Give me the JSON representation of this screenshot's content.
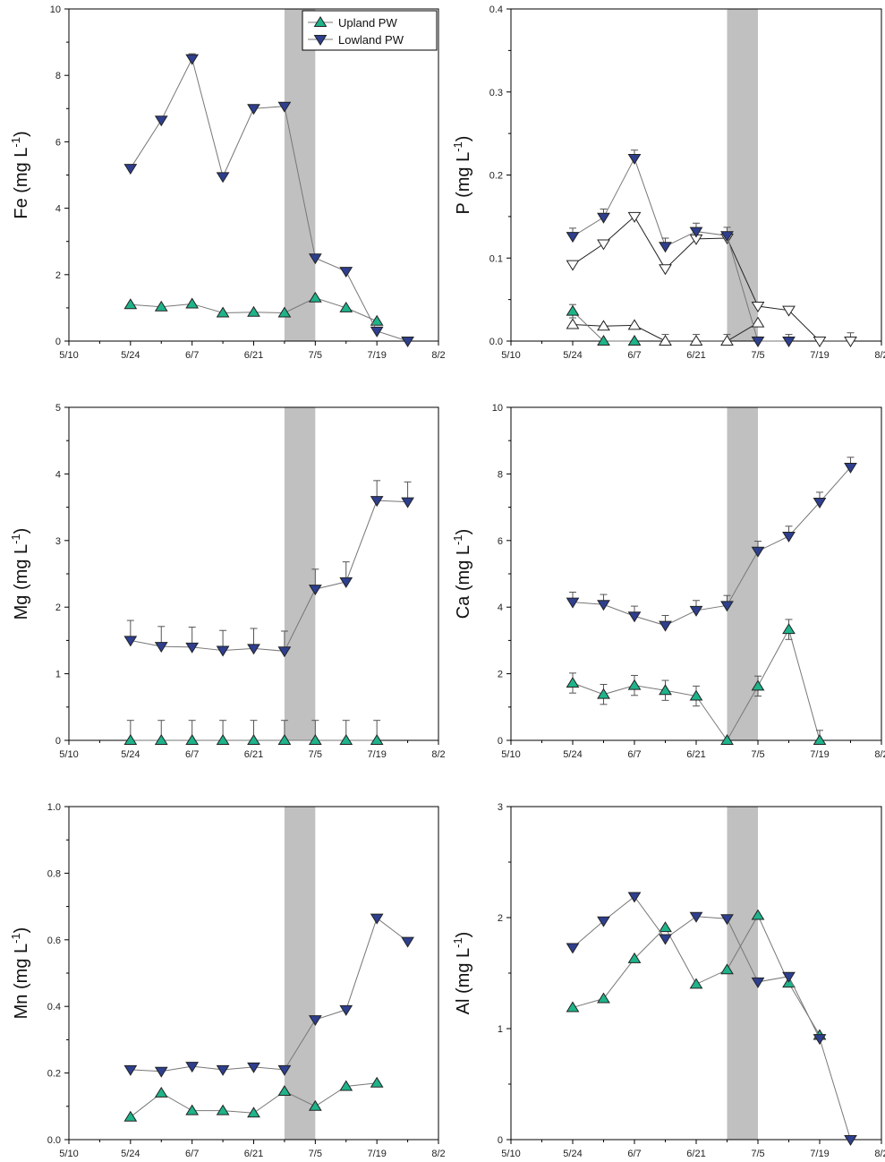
{
  "figure": {
    "legend": {
      "upland_label": "Upland PW",
      "lowland_label": "Lowland PW"
    },
    "colors": {
      "upland": "#1fb38a",
      "lowland": "#2e3f8f",
      "line": "#777777",
      "shade": "#c0c0c0",
      "open": "#ffffff"
    }
  },
  "chart_data": [
    {
      "type": "line",
      "id": "fe",
      "element": "Fe",
      "ylabel_unit": " (mg L",
      "ylabel_sup": "-1",
      "ylabel_close": ")",
      "xticks": [
        "5/10",
        "5/24",
        "6/7",
        "6/21",
        "7/5",
        "7/19",
        "8/2"
      ],
      "xlim": [
        0,
        84
      ],
      "ylim": [
        0,
        10
      ],
      "yticks": [
        "0",
        "2",
        "4",
        "6",
        "8",
        "10"
      ],
      "shade": [
        49,
        56
      ],
      "legend": true,
      "series": [
        {
          "name": "Upland PW",
          "style": "up",
          "x": [
            14,
            21,
            28,
            35,
            42,
            49,
            56,
            63,
            70
          ],
          "y": [
            1.1,
            1.03,
            1.12,
            0.85,
            0.87,
            0.85,
            1.3,
            1.0,
            0.6
          ],
          "err": [
            0,
            0,
            0,
            0,
            0,
            0,
            0,
            0,
            0
          ]
        },
        {
          "name": "Lowland PW",
          "style": "down",
          "x": [
            14,
            21,
            28,
            35,
            42,
            49,
            56,
            63,
            70,
            77
          ],
          "y": [
            5.2,
            6.65,
            8.5,
            4.95,
            7.0,
            7.07,
            2.5,
            2.1,
            0.3,
            0.0
          ],
          "err": [
            0,
            0,
            0.15,
            0,
            0.1,
            0.1,
            0,
            0,
            0,
            0
          ]
        }
      ]
    },
    {
      "type": "line",
      "id": "p",
      "element": "P",
      "ylabel_unit": " (mg L",
      "ylabel_sup": "-1",
      "ylabel_close": ")",
      "xticks": [
        "5/10",
        "5/24",
        "6/7",
        "6/21",
        "7/5",
        "7/19",
        "8/2"
      ],
      "xlim": [
        0,
        84
      ],
      "ylim": [
        0,
        0.4
      ],
      "yticks": [
        "0.0",
        "0.1",
        "0.2",
        "0.3",
        "0.4"
      ],
      "shade": [
        49,
        56
      ],
      "legend": false,
      "series": [
        {
          "name": "Upland PW open",
          "style": "up_open",
          "x": [
            14,
            21,
            28,
            35,
            42,
            49,
            56
          ],
          "y": [
            0.02,
            0.018,
            0.019,
            0,
            0,
            0,
            0.022
          ],
          "err": [
            0,
            0,
            0,
            0.008,
            0.008,
            0.008,
            0
          ]
        },
        {
          "name": "Lowland PW open",
          "style": "down_open",
          "x": [
            14,
            21,
            28,
            35,
            42,
            49,
            56,
            63,
            70,
            77
          ],
          "y": [
            0.092,
            0.117,
            0.15,
            0.087,
            0.123,
            0.124,
            0.042,
            0.037,
            0,
            0
          ],
          "err": [
            0,
            0,
            0,
            0,
            0,
            0,
            0,
            0,
            0,
            0.01
          ]
        },
        {
          "name": "Upland PW",
          "style": "up",
          "x": [
            14,
            21,
            28
          ],
          "y": [
            0.036,
            0,
            0
          ],
          "err": [
            0.008,
            0,
            0
          ]
        },
        {
          "name": "Lowland PW",
          "style": "down",
          "x": [
            14,
            21,
            28,
            35,
            42,
            49,
            56,
            63
          ],
          "y": [
            0.126,
            0.149,
            0.22,
            0.114,
            0.132,
            0.127,
            0,
            0
          ],
          "err": [
            0.01,
            0.01,
            0.01,
            0.01,
            0.01,
            0.01,
            0.005,
            0.008
          ]
        }
      ]
    },
    {
      "type": "line",
      "id": "mg",
      "element": "Mg",
      "ylabel_unit": " (mg L",
      "ylabel_sup": "-1",
      "ylabel_close": ")",
      "xticks": [
        "5/10",
        "5/24",
        "6/7",
        "6/21",
        "7/5",
        "7/19",
        "8/2"
      ],
      "xlim": [
        0,
        84
      ],
      "ylim": [
        0,
        5
      ],
      "yticks": [
        "0",
        "1",
        "2",
        "3",
        "4",
        "5"
      ],
      "shade": [
        49,
        56
      ],
      "legend": false,
      "series": [
        {
          "name": "Upland PW",
          "style": "up",
          "x": [
            14,
            21,
            28,
            35,
            42,
            49,
            56,
            63,
            70
          ],
          "y": [
            0,
            0,
            0,
            0,
            0,
            0,
            0,
            0,
            0
          ],
          "err": [
            0.3,
            0.3,
            0.3,
            0.3,
            0.3,
            0.3,
            0.3,
            0.3,
            0.3
          ]
        },
        {
          "name": "Lowland PW",
          "style": "down",
          "x": [
            14,
            21,
            28,
            35,
            42,
            49,
            56,
            63,
            70,
            77
          ],
          "y": [
            1.5,
            1.41,
            1.4,
            1.35,
            1.38,
            1.34,
            2.27,
            2.38,
            3.6,
            3.58
          ],
          "err": [
            0.3,
            0.3,
            0.3,
            0.3,
            0.3,
            0.3,
            0.3,
            0.3,
            0.3,
            0.3
          ]
        }
      ]
    },
    {
      "type": "line",
      "id": "ca",
      "element": "Ca",
      "ylabel_unit": " (mg L",
      "ylabel_sup": "-1",
      "ylabel_close": ")",
      "xticks": [
        "5/10",
        "5/24",
        "6/7",
        "6/21",
        "7/5",
        "7/19",
        "8/2"
      ],
      "xlim": [
        0,
        84
      ],
      "ylim": [
        0,
        10
      ],
      "yticks": [
        "0",
        "2",
        "4",
        "6",
        "8",
        "10"
      ],
      "shade": [
        49,
        56
      ],
      "legend": false,
      "series": [
        {
          "name": "Upland PW",
          "style": "up",
          "x": [
            14,
            21,
            28,
            35,
            42,
            49,
            56,
            63,
            70
          ],
          "y": [
            1.72,
            1.38,
            1.65,
            1.5,
            1.33,
            0,
            1.63,
            3.33,
            0
          ],
          "err": [
            0.3,
            0.3,
            0.3,
            0.3,
            0.3,
            0,
            0.3,
            0.3,
            0.3
          ]
        },
        {
          "name": "Lowland PW",
          "style": "down",
          "x": [
            14,
            21,
            28,
            35,
            42,
            49,
            56,
            63,
            70,
            77
          ],
          "y": [
            4.15,
            4.08,
            3.73,
            3.45,
            3.9,
            4.05,
            5.68,
            6.13,
            7.15,
            8.2
          ],
          "err": [
            0.3,
            0.3,
            0.3,
            0.3,
            0.3,
            0.3,
            0.3,
            0.3,
            0.3,
            0.3
          ]
        }
      ]
    },
    {
      "type": "line",
      "id": "mn",
      "element": "Mn",
      "ylabel_unit": " (mg L",
      "ylabel_sup": "-1",
      "ylabel_close": ")",
      "xticks": [
        "5/10",
        "5/24",
        "6/7",
        "6/21",
        "7/5",
        "7/19",
        "8/2"
      ],
      "xlim": [
        0,
        84
      ],
      "ylim": [
        0,
        1.0
      ],
      "yticks": [
        "0.0",
        "0.2",
        "0.4",
        "0.6",
        "0.8",
        "1.0"
      ],
      "shade": [
        49,
        56
      ],
      "legend": false,
      "series": [
        {
          "name": "Upland PW",
          "style": "up",
          "x": [
            14,
            21,
            28,
            35,
            42,
            49,
            56,
            63,
            70
          ],
          "y": [
            0.068,
            0.14,
            0.087,
            0.087,
            0.08,
            0.145,
            0.1,
            0.16,
            0.17
          ],
          "err": [
            0,
            0,
            0,
            0,
            0,
            0,
            0,
            0,
            0
          ]
        },
        {
          "name": "Lowland PW",
          "style": "down",
          "x": [
            14,
            21,
            28,
            35,
            42,
            49,
            56,
            63,
            70,
            77
          ],
          "y": [
            0.21,
            0.205,
            0.22,
            0.21,
            0.218,
            0.21,
            0.36,
            0.39,
            0.665,
            0.595
          ],
          "err": [
            0,
            0,
            0,
            0,
            0,
            0,
            0,
            0,
            0,
            0
          ]
        }
      ]
    },
    {
      "type": "line",
      "id": "al",
      "element": "Al",
      "ylabel_unit": " (mg L",
      "ylabel_sup": "-1",
      "ylabel_close": ")",
      "xticks": [
        "5/10",
        "5/24",
        "6/7",
        "6/21",
        "7/5",
        "7/19",
        "8/2"
      ],
      "xlim": [
        0,
        84
      ],
      "ylim": [
        0,
        3
      ],
      "yticks": [
        "0",
        "1",
        "2",
        "3"
      ],
      "shade": [
        49,
        56
      ],
      "legend": false,
      "series": [
        {
          "name": "Upland PW",
          "style": "up",
          "x": [
            14,
            21,
            28,
            35,
            42,
            49,
            56,
            63,
            70
          ],
          "y": [
            1.19,
            1.27,
            1.63,
            1.91,
            1.4,
            1.53,
            2.02,
            1.41,
            0.94
          ],
          "err": [
            0,
            0,
            0,
            0,
            0,
            0,
            0,
            0,
            0
          ]
        },
        {
          "name": "Lowland PW",
          "style": "down",
          "x": [
            14,
            21,
            28,
            35,
            42,
            49,
            56,
            63,
            70,
            77
          ],
          "y": [
            1.73,
            1.97,
            2.19,
            1.81,
            2.01,
            1.99,
            1.42,
            1.47,
            0.91,
            0.0
          ],
          "err": [
            0,
            0,
            0,
            0,
            0,
            0,
            0,
            0,
            0,
            0
          ]
        }
      ]
    }
  ]
}
